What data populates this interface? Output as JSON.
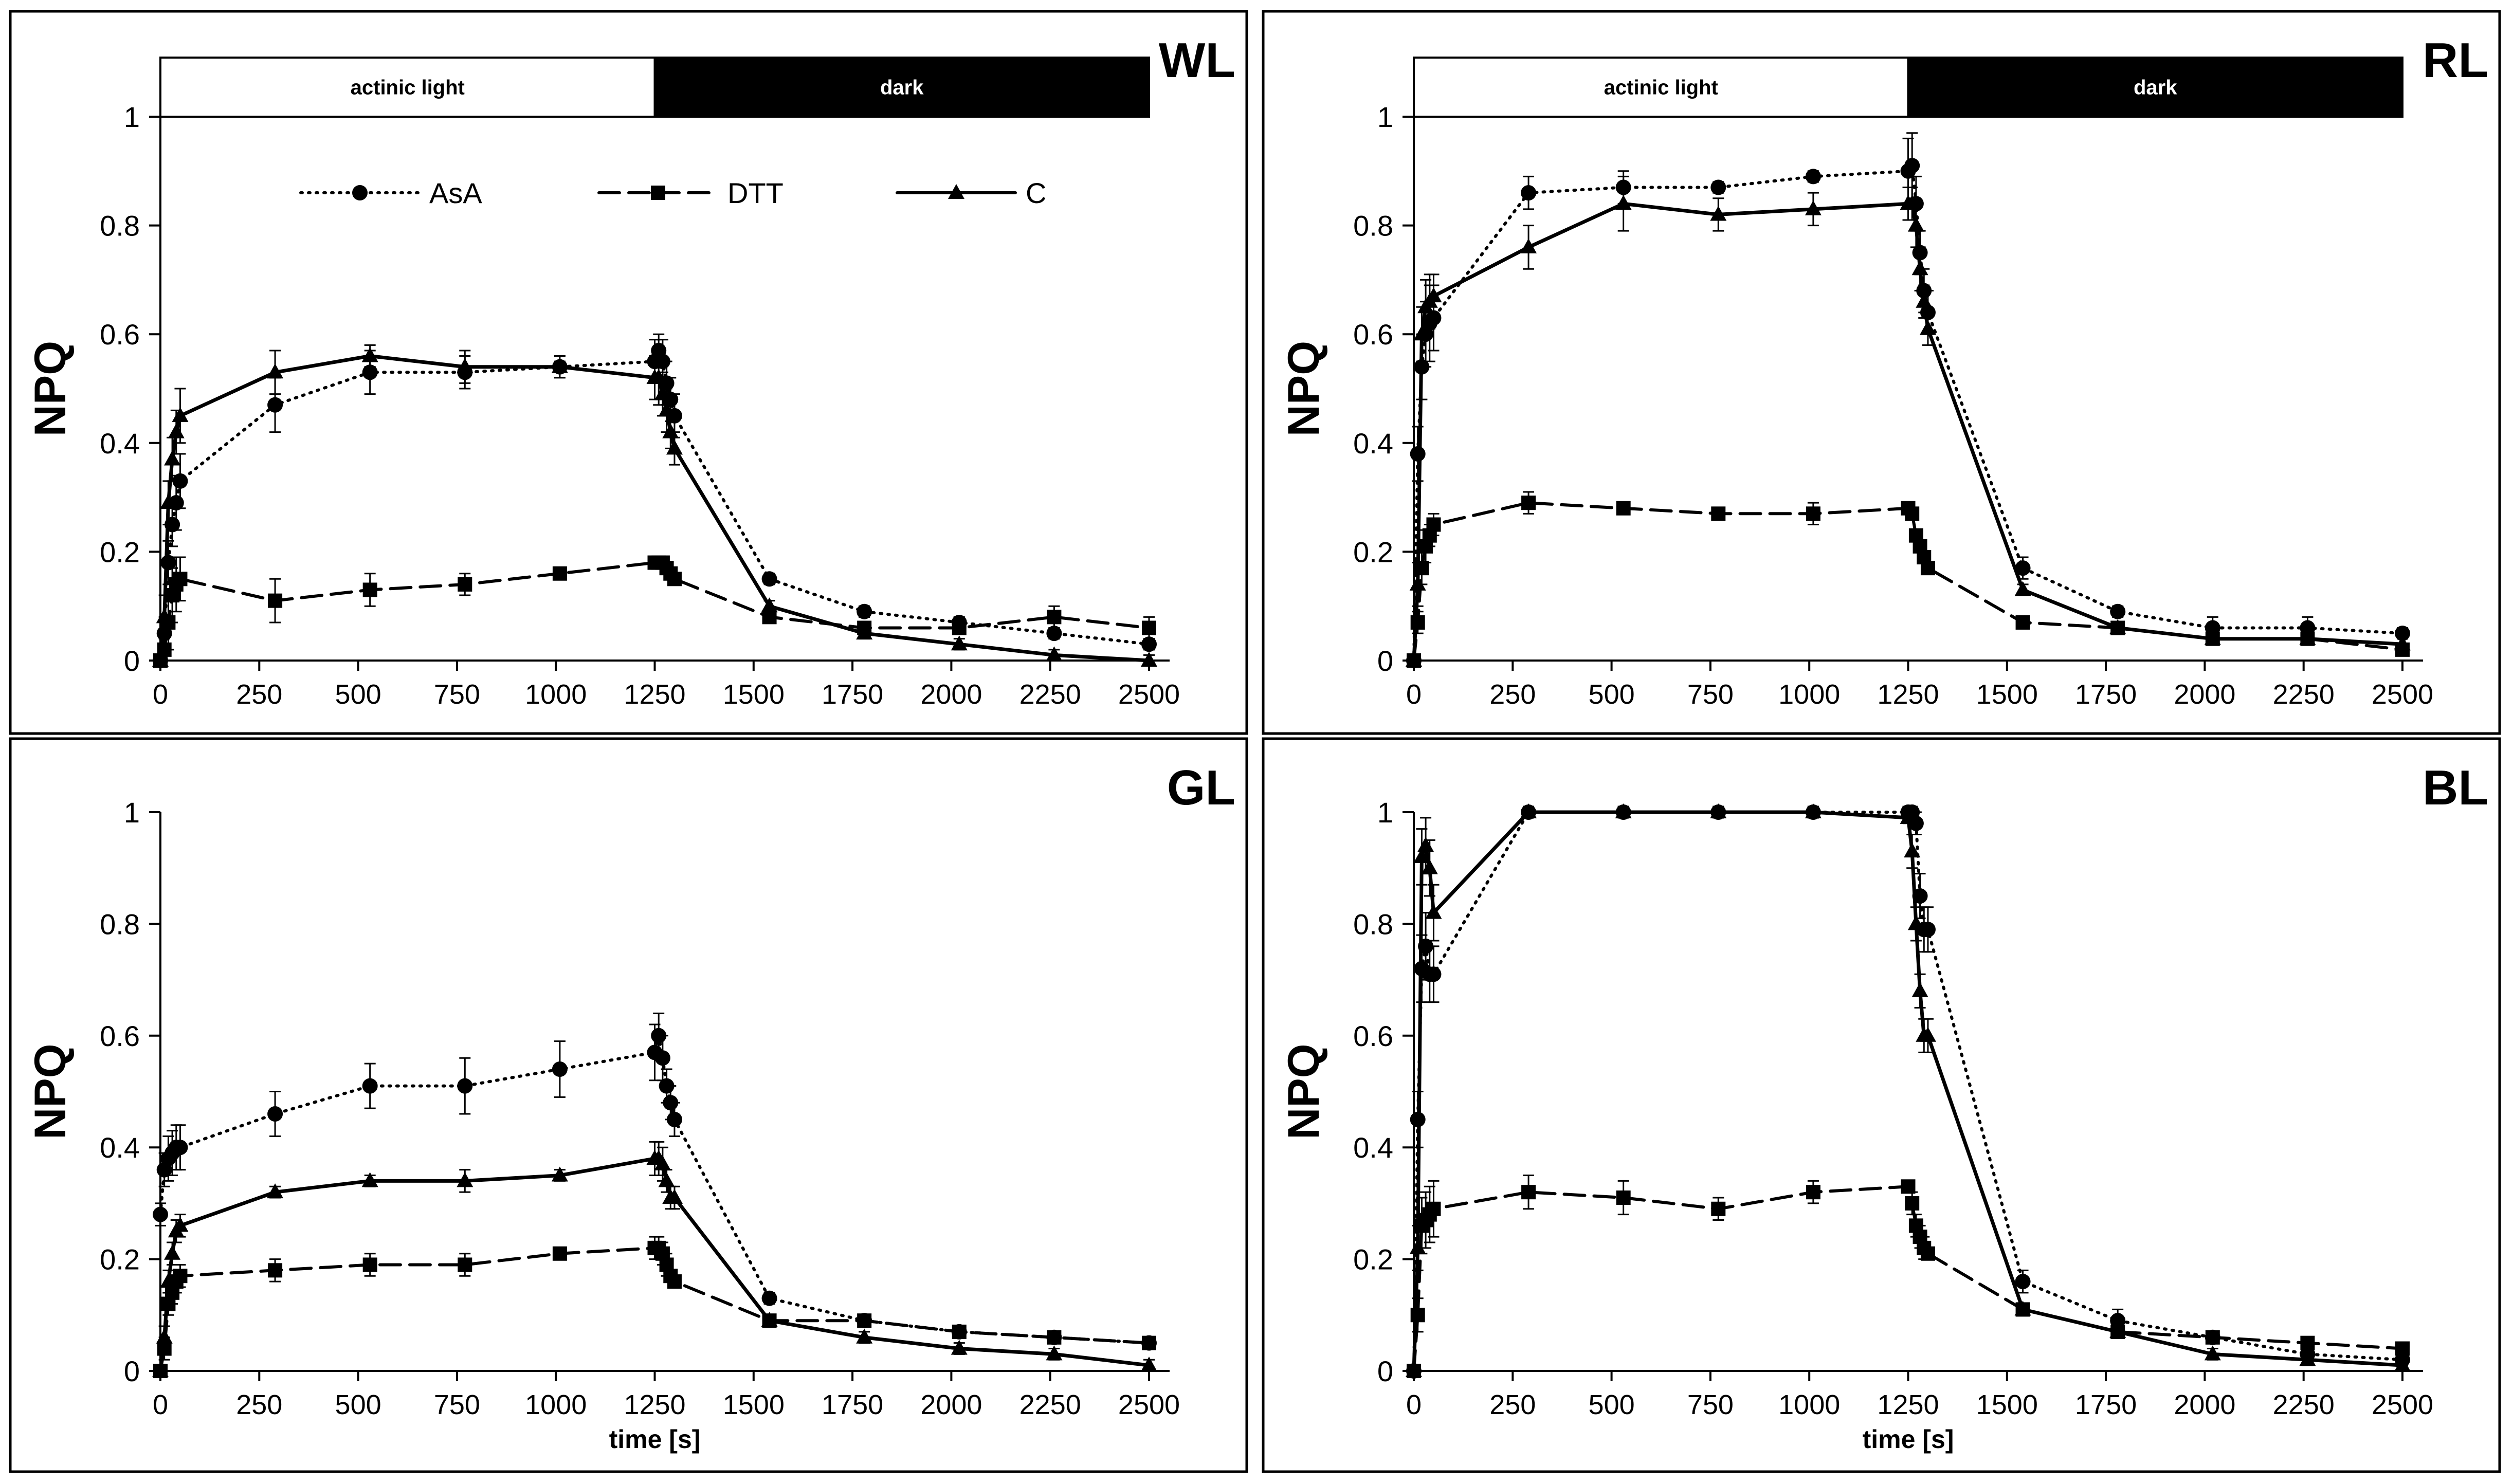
{
  "figure": {
    "ylabel": "NPQ",
    "xlabel": "time [s]",
    "band_light_label": "actinic light",
    "band_dark_label": "dark"
  },
  "legend": [
    {
      "name": "AsA",
      "marker": "circle",
      "dash": "dotted"
    },
    {
      "name": "DTT",
      "marker": "square",
      "dash": "dashed"
    },
    {
      "name": "C",
      "marker": "triangle",
      "dash": "solid"
    }
  ],
  "chart_data": [
    {
      "type": "line",
      "panel_label": "WL",
      "xlabel": "",
      "ylabel": "NPQ",
      "xlim": [
        0,
        2500
      ],
      "ylim": [
        0,
        1
      ],
      "xticks": [
        0,
        250,
        500,
        750,
        1000,
        1250,
        1500,
        1750,
        2000,
        2250,
        2500
      ],
      "yticks": [
        0,
        0.2,
        0.4,
        0.6,
        0.8,
        1
      ],
      "light_period": [
        0,
        1250
      ],
      "dark_period": [
        1250,
        2500
      ],
      "series": [
        {
          "name": "AsA",
          "x": [
            0,
            10,
            20,
            30,
            40,
            50,
            290,
            530,
            770,
            1010,
            1250,
            1260,
            1270,
            1280,
            1290,
            1300,
            1540,
            1780,
            2020,
            2260,
            2500
          ],
          "y": [
            0,
            0.05,
            0.18,
            0.25,
            0.29,
            0.33,
            0.47,
            0.53,
            0.53,
            0.54,
            0.55,
            0.57,
            0.55,
            0.51,
            0.48,
            0.45,
            0.15,
            0.09,
            0.07,
            0.05,
            0.03
          ],
          "err": [
            0.01,
            0.03,
            0.04,
            0.04,
            0.05,
            0.05,
            0.05,
            0.04,
            0.03,
            0.02,
            0.04,
            0.03,
            0.04,
            0.04,
            0.04,
            0.04,
            0.01,
            0.01,
            0.01,
            0.01,
            0.01
          ]
        },
        {
          "name": "DTT",
          "x": [
            0,
            10,
            20,
            30,
            40,
            50,
            290,
            530,
            770,
            1010,
            1250,
            1260,
            1270,
            1280,
            1290,
            1300,
            1540,
            1780,
            2020,
            2260,
            2500
          ],
          "y": [
            0,
            0.02,
            0.07,
            0.12,
            0.14,
            0.15,
            0.11,
            0.13,
            0.14,
            0.16,
            0.18,
            0.18,
            0.18,
            0.17,
            0.16,
            0.15,
            0.08,
            0.06,
            0.06,
            0.08,
            0.06
          ],
          "err": [
            0.01,
            0.03,
            0.05,
            0.05,
            0.05,
            0.04,
            0.04,
            0.03,
            0.02,
            0.01,
            0.01,
            0.01,
            0.01,
            0.01,
            0.01,
            0.01,
            0.01,
            0.01,
            0.01,
            0.02,
            0.02
          ]
        },
        {
          "name": "C",
          "x": [
            0,
            10,
            20,
            30,
            40,
            50,
            290,
            530,
            770,
            1010,
            1250,
            1260,
            1270,
            1280,
            1290,
            1300,
            1540,
            1780,
            2020,
            2260,
            2500
          ],
          "y": [
            0,
            0.08,
            0.29,
            0.37,
            0.42,
            0.45,
            0.53,
            0.56,
            0.54,
            0.54,
            0.52,
            0.52,
            0.49,
            0.46,
            0.42,
            0.39,
            0.1,
            0.05,
            0.03,
            0.01,
            0
          ],
          "err": [
            0.01,
            0.04,
            0.04,
            0.04,
            0.04,
            0.05,
            0.04,
            0.02,
            0.03,
            0.01,
            0.04,
            0.05,
            0.04,
            0.04,
            0.03,
            0.03,
            0.01,
            0.01,
            0.01,
            0.01,
            0.01
          ]
        }
      ]
    },
    {
      "type": "line",
      "panel_label": "RL",
      "xlabel": "",
      "ylabel": "NPQ",
      "xlim": [
        0,
        2500
      ],
      "ylim": [
        0,
        1
      ],
      "xticks": [
        0,
        250,
        500,
        750,
        1000,
        1250,
        1500,
        1750,
        2000,
        2250,
        2500
      ],
      "yticks": [
        0,
        0.2,
        0.4,
        0.6,
        0.8,
        1
      ],
      "light_period": [
        0,
        1250
      ],
      "dark_period": [
        1250,
        2500
      ],
      "series": [
        {
          "name": "AsA",
          "x": [
            0,
            10,
            20,
            30,
            40,
            50,
            290,
            530,
            770,
            1010,
            1250,
            1260,
            1270,
            1280,
            1290,
            1300,
            1540,
            1780,
            2020,
            2260,
            2500
          ],
          "y": [
            0,
            0.38,
            0.54,
            0.6,
            0.62,
            0.63,
            0.86,
            0.87,
            0.87,
            0.89,
            0.9,
            0.91,
            0.84,
            0.75,
            0.68,
            0.64,
            0.17,
            0.09,
            0.06,
            0.06,
            0.05
          ],
          "err": [
            0.01,
            0.05,
            0.06,
            0.06,
            0.07,
            0.06,
            0.03,
            0.03,
            0.01,
            0.01,
            0.06,
            0.06,
            0.05,
            0.04,
            0.04,
            0.04,
            0.02,
            0.01,
            0.02,
            0.02,
            0.01
          ]
        },
        {
          "name": "DTT",
          "x": [
            0,
            10,
            20,
            30,
            40,
            50,
            290,
            530,
            770,
            1010,
            1250,
            1260,
            1270,
            1280,
            1290,
            1300,
            1540,
            1780,
            2020,
            2260,
            2500
          ],
          "y": [
            0,
            0.07,
            0.17,
            0.21,
            0.23,
            0.25,
            0.29,
            0.28,
            0.27,
            0.27,
            0.28,
            0.27,
            0.23,
            0.21,
            0.19,
            0.17,
            0.07,
            0.06,
            0.04,
            0.04,
            0.02
          ],
          "err": [
            0.01,
            0.02,
            0.03,
            0.03,
            0.02,
            0.02,
            0.02,
            0.01,
            0.01,
            0.02,
            0.01,
            0.01,
            0.01,
            0.01,
            0.01,
            0.01,
            0.01,
            0.01,
            0.01,
            0.01,
            0.01
          ]
        },
        {
          "name": "C",
          "x": [
            0,
            10,
            20,
            30,
            40,
            50,
            290,
            530,
            770,
            1010,
            1250,
            1260,
            1270,
            1280,
            1290,
            1300,
            1540,
            1780,
            2020,
            2260,
            2500
          ],
          "y": [
            0,
            0.14,
            0.6,
            0.65,
            0.66,
            0.67,
            0.76,
            0.84,
            0.82,
            0.83,
            0.84,
            0.84,
            0.8,
            0.72,
            0.66,
            0.61,
            0.13,
            0.06,
            0.04,
            0.04,
            0.03
          ],
          "err": [
            0.01,
            0.04,
            0.05,
            0.05,
            0.05,
            0.04,
            0.04,
            0.05,
            0.03,
            0.03,
            0.03,
            0.03,
            0.04,
            0.04,
            0.03,
            0.03,
            0.01,
            0.01,
            0.01,
            0.01,
            0.01
          ]
        }
      ]
    },
    {
      "type": "line",
      "panel_label": "GL",
      "xlabel": "time [s]",
      "ylabel": "NPQ",
      "xlim": [
        0,
        2500
      ],
      "ylim": [
        0,
        1
      ],
      "xticks": [
        0,
        250,
        500,
        750,
        1000,
        1250,
        1500,
        1750,
        2000,
        2250,
        2500
      ],
      "yticks": [
        0,
        0.2,
        0.4,
        0.6,
        0.8,
        1
      ],
      "series": [
        {
          "name": "AsA",
          "x": [
            0,
            10,
            20,
            30,
            40,
            50,
            290,
            530,
            770,
            1010,
            1250,
            1260,
            1270,
            1280,
            1290,
            1300,
            1540,
            1780,
            2020,
            2260,
            2500
          ],
          "y": [
            0.28,
            0.36,
            0.38,
            0.39,
            0.4,
            0.4,
            0.46,
            0.51,
            0.51,
            0.54,
            0.57,
            0.6,
            0.56,
            0.51,
            0.48,
            0.45,
            0.13,
            0.09,
            0.07,
            0.06,
            0.05
          ],
          "err": [
            0.02,
            0.03,
            0.04,
            0.04,
            0.04,
            0.04,
            0.04,
            0.04,
            0.05,
            0.05,
            0.05,
            0.04,
            0.04,
            0.03,
            0.03,
            0.03,
            0.01,
            0.01,
            0.01,
            0.01,
            0.01
          ]
        },
        {
          "name": "DTT",
          "x": [
            0,
            10,
            20,
            30,
            40,
            50,
            290,
            530,
            770,
            1010,
            1250,
            1260,
            1270,
            1280,
            1290,
            1300,
            1540,
            1780,
            2020,
            2260,
            2500
          ],
          "y": [
            0,
            0.04,
            0.12,
            0.14,
            0.16,
            0.17,
            0.18,
            0.19,
            0.19,
            0.21,
            0.22,
            0.22,
            0.21,
            0.19,
            0.17,
            0.16,
            0.09,
            0.09,
            0.07,
            0.06,
            0.05
          ],
          "err": [
            0.01,
            0.02,
            0.02,
            0.02,
            0.02,
            0.02,
            0.02,
            0.02,
            0.02,
            0.01,
            0.02,
            0.02,
            0.02,
            0.02,
            0.01,
            0.01,
            0.01,
            0.01,
            0.01,
            0.01,
            0.01
          ]
        },
        {
          "name": "C",
          "x": [
            0,
            10,
            20,
            30,
            40,
            50,
            290,
            530,
            770,
            1010,
            1250,
            1260,
            1270,
            1280,
            1290,
            1300,
            1540,
            1780,
            2020,
            2260,
            2500
          ],
          "y": [
            0,
            0.06,
            0.16,
            0.21,
            0.25,
            0.26,
            0.32,
            0.34,
            0.34,
            0.35,
            0.38,
            0.38,
            0.37,
            0.34,
            0.31,
            0.31,
            0.09,
            0.06,
            0.04,
            0.03,
            0.01
          ],
          "err": [
            0.01,
            0.02,
            0.02,
            0.02,
            0.02,
            0.02,
            0.01,
            0.01,
            0.02,
            0.01,
            0.03,
            0.03,
            0.03,
            0.02,
            0.02,
            0.02,
            0.01,
            0.01,
            0.01,
            0.01,
            0.01
          ]
        }
      ]
    },
    {
      "type": "line",
      "panel_label": "BL",
      "xlabel": "time [s]",
      "ylabel": "NPQ",
      "xlim": [
        0,
        2500
      ],
      "ylim": [
        0,
        1
      ],
      "xticks": [
        0,
        250,
        500,
        750,
        1000,
        1250,
        1500,
        1750,
        2000,
        2250,
        2500
      ],
      "yticks": [
        0,
        0.2,
        0.4,
        0.6,
        0.8,
        1
      ],
      "series": [
        {
          "name": "AsA",
          "x": [
            0,
            10,
            20,
            30,
            40,
            50,
            290,
            530,
            770,
            1010,
            1250,
            1260,
            1270,
            1280,
            1290,
            1300,
            1540,
            1780,
            2020,
            2260,
            2500
          ],
          "y": [
            0,
            0.45,
            0.72,
            0.76,
            0.71,
            0.71,
            1,
            1,
            1,
            1,
            1,
            1,
            0.98,
            0.85,
            0.79,
            0.79,
            0.16,
            0.09,
            0.06,
            0.03,
            0.02
          ],
          "err": [
            0.01,
            0.05,
            0.06,
            0.06,
            0.05,
            0.05,
            0.01,
            0.01,
            0.01,
            0.01,
            0.01,
            0.01,
            0.02,
            0.04,
            0.04,
            0.04,
            0.02,
            0.02,
            0.01,
            0.01,
            0.01
          ]
        },
        {
          "name": "DTT",
          "x": [
            0,
            10,
            20,
            30,
            40,
            50,
            290,
            530,
            770,
            1010,
            1250,
            1260,
            1270,
            1280,
            1290,
            1300,
            1540,
            1780,
            2020,
            2260,
            2500
          ],
          "y": [
            0,
            0.1,
            0.26,
            0.27,
            0.28,
            0.29,
            0.32,
            0.31,
            0.29,
            0.32,
            0.33,
            0.3,
            0.26,
            0.24,
            0.22,
            0.21,
            0.11,
            0.07,
            0.06,
            0.05,
            0.04
          ],
          "err": [
            0.01,
            0.03,
            0.05,
            0.05,
            0.05,
            0.05,
            0.03,
            0.03,
            0.02,
            0.02,
            0.01,
            0.02,
            0.02,
            0.02,
            0.02,
            0.01,
            0.01,
            0.01,
            0.01,
            0.01,
            0.01
          ]
        },
        {
          "name": "C",
          "x": [
            0,
            10,
            20,
            30,
            40,
            50,
            290,
            530,
            770,
            1010,
            1250,
            1260,
            1270,
            1280,
            1290,
            1300,
            1540,
            1780,
            2020,
            2260,
            2500
          ],
          "y": [
            0,
            0.22,
            0.92,
            0.94,
            0.9,
            0.82,
            1,
            1,
            1,
            1,
            0.99,
            0.93,
            0.8,
            0.68,
            0.6,
            0.6,
            0.11,
            0.07,
            0.03,
            0.02,
            0.01
          ],
          "err": [
            0.01,
            0.04,
            0.05,
            0.05,
            0.05,
            0.05,
            0.01,
            0.01,
            0.01,
            0.01,
            0.01,
            0.03,
            0.03,
            0.03,
            0.03,
            0.03,
            0.01,
            0.01,
            0.01,
            0.01,
            0.01
          ]
        }
      ]
    }
  ]
}
